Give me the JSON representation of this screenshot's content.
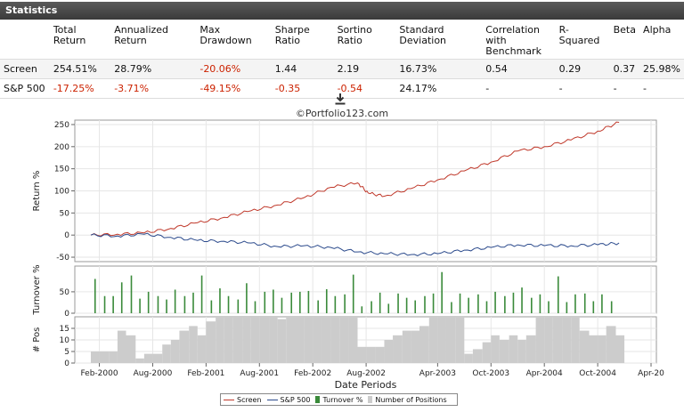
{
  "header": {
    "title": "Statistics"
  },
  "stats": {
    "columns": [
      "Total Return",
      "Annualized Return",
      "Max Drawdown",
      "Sharpe Ratio",
      "Sortino Ratio",
      "Standard Deviation",
      "Correlation with Benchmark",
      "R-Squared",
      "Beta",
      "Alpha"
    ],
    "rows": [
      {
        "name": "Screen",
        "values": [
          "254.51%",
          "28.79%",
          "-20.06%",
          "1.44",
          "2.19",
          "16.73%",
          "0.54",
          "0.29",
          "0.37",
          "25.98%"
        ]
      },
      {
        "name": "S&P 500",
        "values": [
          "-17.25%",
          "-3.71%",
          "-49.15%",
          "-0.35",
          "-0.54",
          "24.17%",
          "-",
          "-",
          "-",
          "-"
        ]
      }
    ]
  },
  "copyright": "©Portfolio123.com",
  "icons": {
    "download": "download-icon"
  },
  "colors": {
    "screen": "#c0392b",
    "sp500": "#2b4a8c",
    "turnover": "#3a8a3a",
    "positions": "#cccccc",
    "negative": "#cc2200"
  },
  "chart_data": [
    {
      "type": "line",
      "ylabel": "Return %",
      "ylim": [
        -60,
        260
      ],
      "yticks": [
        250,
        200,
        150,
        100,
        50,
        0,
        -50
      ],
      "series": [
        {
          "name": "Screen",
          "x": [
            2000.0,
            2000.25,
            2000.5,
            2000.75,
            2001.0,
            2001.25,
            2001.5,
            2001.75,
            2002.0,
            2002.25,
            2002.5,
            2002.6,
            2002.75,
            2003.0,
            2003.25,
            2003.5,
            2003.75,
            2004.0,
            2004.25,
            2004.5,
            2004.75,
            2004.95
          ],
          "values": [
            0,
            2,
            5,
            15,
            28,
            40,
            55,
            68,
            85,
            108,
            118,
            95,
            88,
            105,
            125,
            145,
            165,
            190,
            200,
            215,
            235,
            255
          ]
        },
        {
          "name": "S&P 500",
          "x": [
            2000.0,
            2000.25,
            2000.5,
            2000.75,
            2001.0,
            2001.25,
            2001.5,
            2001.75,
            2002.0,
            2002.25,
            2002.5,
            2002.75,
            2003.0,
            2003.25,
            2003.5,
            2003.75,
            2004.0,
            2004.25,
            2004.5,
            2004.75,
            2004.95
          ],
          "values": [
            0,
            -2,
            2,
            -5,
            -12,
            -14,
            -18,
            -26,
            -24,
            -28,
            -38,
            -42,
            -44,
            -42,
            -34,
            -28,
            -22,
            -24,
            -24,
            -22,
            -18
          ]
        }
      ]
    },
    {
      "type": "bar",
      "ylabel": "Turnover %",
      "ylim": [
        0,
        110
      ],
      "yticks": [
        50,
        0
      ],
      "series": [
        {
          "name": "Turnover %",
          "x": [
            2000.04,
            2000.13,
            2000.21,
            2000.29,
            2000.38,
            2000.46,
            2000.54,
            2000.63,
            2000.71,
            2000.79,
            2000.88,
            2000.96,
            2001.04,
            2001.13,
            2001.21,
            2001.29,
            2001.38,
            2001.46,
            2001.54,
            2001.63,
            2001.71,
            2001.79,
            2001.88,
            2001.96,
            2002.04,
            2002.13,
            2002.21,
            2002.29,
            2002.38,
            2002.46,
            2002.54,
            2002.63,
            2002.71,
            2002.79,
            2002.88,
            2002.96,
            2003.04,
            2003.13,
            2003.21,
            2003.29,
            2003.38,
            2003.46,
            2003.54,
            2003.63,
            2003.71,
            2003.79,
            2003.88,
            2003.96,
            2004.04,
            2004.13,
            2004.21,
            2004.29,
            2004.38,
            2004.46,
            2004.54,
            2004.63,
            2004.71,
            2004.79,
            2004.88
          ],
          "values": [
            80,
            40,
            40,
            72,
            88,
            34,
            50,
            40,
            32,
            55,
            40,
            48,
            88,
            30,
            58,
            40,
            32,
            70,
            28,
            50,
            55,
            36,
            48,
            50,
            52,
            30,
            56,
            40,
            44,
            90,
            16,
            28,
            48,
            22,
            46,
            36,
            30,
            40,
            46,
            96,
            26,
            46,
            36,
            44,
            28,
            50,
            40,
            48,
            60,
            36,
            44,
            28,
            86,
            26,
            44,
            46,
            28,
            44,
            28
          ]
        }
      ]
    },
    {
      "type": "area",
      "ylabel": "# Pos",
      "ylim": [
        0,
        20
      ],
      "yticks": [
        15,
        10,
        5,
        0
      ],
      "series": [
        {
          "name": "Number of Positions",
          "x": [
            2000.0,
            2000.08,
            2000.17,
            2000.25,
            2000.33,
            2000.42,
            2000.5,
            2000.58,
            2000.67,
            2000.75,
            2000.83,
            2000.92,
            2001.0,
            2001.08,
            2001.17,
            2001.25,
            2001.33,
            2001.42,
            2001.5,
            2001.58,
            2001.67,
            2001.75,
            2001.83,
            2001.92,
            2002.0,
            2002.08,
            2002.17,
            2002.25,
            2002.33,
            2002.42,
            2002.5,
            2002.58,
            2002.67,
            2002.75,
            2002.83,
            2002.92,
            2003.0,
            2003.08,
            2003.17,
            2003.25,
            2003.33,
            2003.42,
            2003.5,
            2003.58,
            2003.67,
            2003.75,
            2003.83,
            2003.92,
            2004.0,
            2004.08,
            2004.17,
            2004.25,
            2004.33,
            2004.42,
            2004.5,
            2004.58,
            2004.67,
            2004.75,
            2004.83,
            2004.92
          ],
          "values": [
            5,
            5,
            5,
            14,
            12,
            2,
            4,
            4,
            8,
            10,
            14,
            16,
            12,
            18,
            20,
            20,
            20,
            20,
            20,
            20,
            20,
            19,
            20,
            20,
            20,
            20,
            20,
            20,
            20,
            20,
            7,
            7,
            7,
            10,
            12,
            14,
            14,
            16,
            20,
            20,
            20,
            20,
            4,
            6,
            9,
            12,
            10,
            12,
            10,
            12,
            20,
            20,
            20,
            20,
            20,
            14,
            12,
            12,
            16,
            12
          ]
        }
      ]
    }
  ],
  "xaxis": {
    "xlabel": "Date Periods",
    "xlim": [
      1999.85,
      2005.3
    ],
    "ticks": [
      {
        "label": "Feb-2000",
        "x": 2000.08
      },
      {
        "label": "Aug-2000",
        "x": 2000.58
      },
      {
        "label": "Feb-2001",
        "x": 2001.08
      },
      {
        "label": "Aug-2001",
        "x": 2001.58
      },
      {
        "label": "Feb-2002",
        "x": 2002.08
      },
      {
        "label": "Aug-2002",
        "x": 2002.58
      },
      {
        "label": "Apr-2003",
        "x": 2003.25
      },
      {
        "label": "Oct-2003",
        "x": 2003.75
      },
      {
        "label": "Apr-2004",
        "x": 2004.25
      },
      {
        "label": "Oct-2004",
        "x": 2004.75
      },
      {
        "label": "Apr-20",
        "x": 2005.25
      }
    ]
  },
  "legend": [
    {
      "label": "Screen",
      "kind": "line",
      "color": "#c0392b"
    },
    {
      "label": "S&P 500",
      "kind": "line",
      "color": "#2b4a8c"
    },
    {
      "label": "Turnover %",
      "kind": "box",
      "color": "#3a8a3a"
    },
    {
      "label": "Number of Positions",
      "kind": "box",
      "color": "#cccccc"
    }
  ]
}
